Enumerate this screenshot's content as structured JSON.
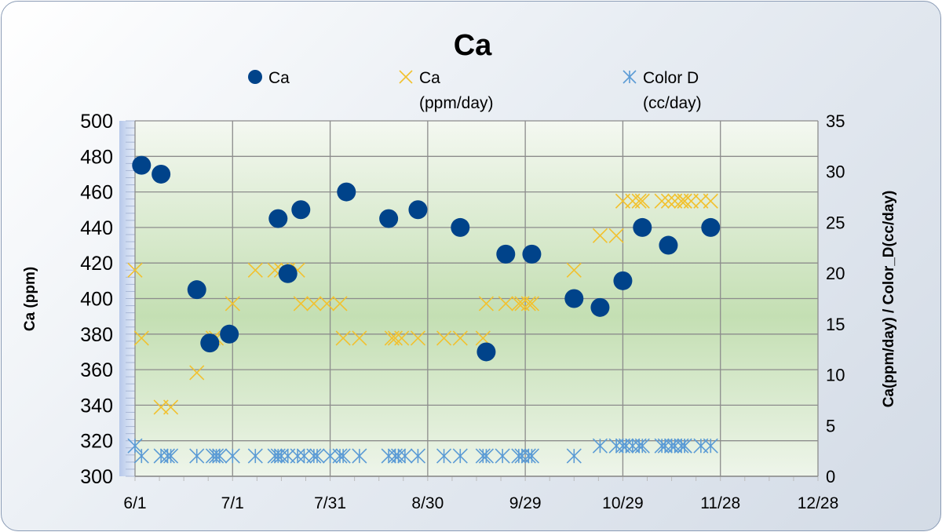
{
  "chart_data": {
    "type": "scatter",
    "title": "Ca",
    "xlabel": "",
    "ylabel": "Ca (ppm)",
    "y2label": "Ca(ppm/day) / Color_D(cc/day)",
    "x_unit": "days since 6/1",
    "xlim": [
      0,
      210
    ],
    "xticks": [
      0,
      30,
      60,
      90,
      120,
      150,
      180,
      210
    ],
    "xtick_labels": [
      "6/1",
      "7/1",
      "7/31",
      "8/30",
      "9/29",
      "10/29",
      "11/28",
      "12/28"
    ],
    "ylim": [
      300,
      500
    ],
    "yticks": [
      300,
      320,
      340,
      360,
      380,
      400,
      420,
      440,
      460,
      480,
      500
    ],
    "y2lim": [
      0,
      35
    ],
    "y2ticks": [
      0,
      5,
      10,
      15,
      20,
      25,
      30,
      35
    ],
    "grid": true,
    "legend": "top",
    "series": [
      {
        "name": "Ca",
        "axis": "left",
        "marker": "circle",
        "color": "#00438a",
        "x": [
          2,
          8,
          19,
          23,
          29,
          44,
          47,
          51,
          65,
          78,
          87,
          100,
          108,
          114,
          122,
          135,
          143,
          150,
          156,
          164,
          177
        ],
        "y": [
          475,
          470,
          405,
          375,
          380,
          445,
          414,
          450,
          460,
          445,
          450,
          440,
          370,
          425,
          425,
          400,
          395,
          410,
          440,
          430,
          440
        ]
      },
      {
        "name": "Ca (ppm/day)",
        "axis": "right",
        "marker": "x",
        "color": "#f2c12e",
        "x": [
          0,
          2,
          8,
          11,
          19,
          24,
          25,
          30,
          37,
          43,
          45,
          47,
          50,
          51,
          55,
          59,
          63,
          64,
          69,
          79,
          80,
          82,
          87,
          95,
          100,
          107,
          108,
          114,
          118,
          119,
          121,
          122,
          135,
          143,
          148,
          150,
          153,
          155,
          156,
          162,
          164,
          166,
          168,
          169,
          169,
          171,
          174,
          177
        ],
        "y": [
          20.3,
          13.6,
          6.8,
          6.8,
          10.2,
          13.6,
          13.6,
          17,
          20.3,
          20.3,
          20.3,
          20.3,
          20.3,
          17,
          17,
          17,
          17,
          13.6,
          13.6,
          13.6,
          13.6,
          13.6,
          13.6,
          13.6,
          13.6,
          13.6,
          17,
          17,
          17,
          17,
          17,
          17,
          20.3,
          23.7,
          23.7,
          27.1,
          27.1,
          27.1,
          27.1,
          27.1,
          27.1,
          27.1,
          27.1,
          27.1,
          27.1,
          27.1,
          27.1,
          27.1
        ]
      },
      {
        "name": "Color D (cc/day)",
        "axis": "right",
        "marker": "asterisk",
        "color": "#5b9bd5",
        "x": [
          0,
          2,
          8,
          10,
          11,
          19,
          24,
          25,
          26,
          30,
          37,
          43,
          44,
          45,
          47,
          50,
          52,
          55,
          56,
          60,
          63,
          64,
          69,
          78,
          80,
          81,
          83,
          87,
          95,
          100,
          107,
          108,
          113,
          118,
          119,
          121,
          122,
          135,
          143,
          148,
          150,
          151,
          153,
          155,
          156,
          162,
          163,
          165,
          166,
          168,
          169,
          169,
          174,
          177
        ],
        "y": [
          3,
          2,
          2,
          2,
          2,
          2,
          2,
          2,
          2,
          2,
          2,
          2,
          2,
          2,
          2,
          2,
          2,
          2,
          2,
          2,
          2,
          2,
          2,
          2,
          2,
          2,
          2,
          2,
          2,
          2,
          2,
          2,
          2,
          2,
          2,
          2,
          2,
          2,
          3,
          3,
          3,
          3,
          3,
          3,
          3,
          3,
          3,
          3,
          3,
          3,
          3,
          3,
          3,
          3
        ]
      }
    ],
    "legend_entries": [
      {
        "line1": "Ca",
        "line2": ""
      },
      {
        "line1": "Ca",
        "line2": "(ppm/day)"
      },
      {
        "line1": "Color D",
        "line2": "(cc/day)"
      }
    ]
  }
}
